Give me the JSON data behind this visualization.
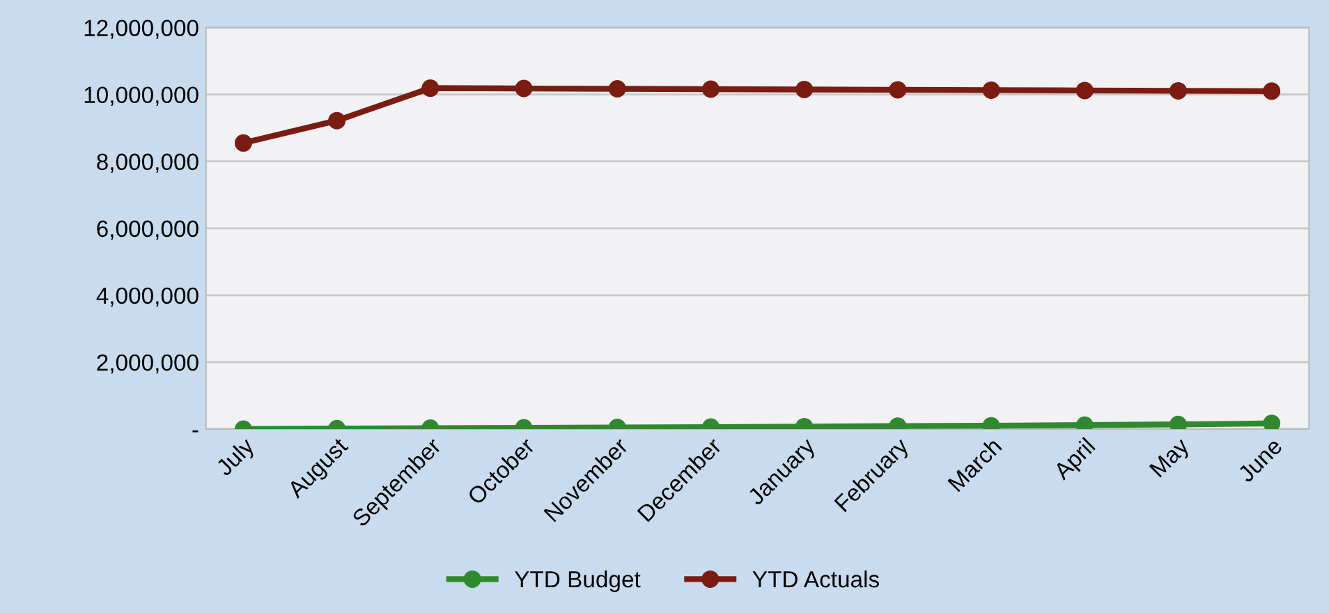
{
  "chart_data": {
    "type": "line",
    "categories": [
      "July",
      "August",
      "September",
      "October",
      "November",
      "December",
      "January",
      "February",
      "March",
      "April",
      "May",
      "June"
    ],
    "series": [
      {
        "name": "YTD Budget",
        "color": "#2f8a2f",
        "values": [
          0,
          15000,
          30000,
          40000,
          50000,
          60000,
          75000,
          90000,
          100000,
          120000,
          140000,
          170000
        ]
      },
      {
        "name": "YTD Actuals",
        "color": "#7a1c12",
        "values": [
          8550000,
          9220000,
          10190000,
          10180000,
          10170000,
          10160000,
          10150000,
          10140000,
          10130000,
          10120000,
          10110000,
          10100000
        ]
      }
    ],
    "ylim": [
      0,
      12000000
    ],
    "yticks": [
      {
        "value": 0,
        "label": "-"
      },
      {
        "value": 2000000,
        "label": "2,000,000"
      },
      {
        "value": 4000000,
        "label": "4,000,000"
      },
      {
        "value": 6000000,
        "label": "6,000,000"
      },
      {
        "value": 8000000,
        "label": "8,000,000"
      },
      {
        "value": 10000000,
        "label": "10,000,000"
      },
      {
        "value": 12000000,
        "label": "12,000,000"
      }
    ],
    "grid": "y",
    "legend": "bottom",
    "marker": "circle",
    "line_style": "solid"
  }
}
